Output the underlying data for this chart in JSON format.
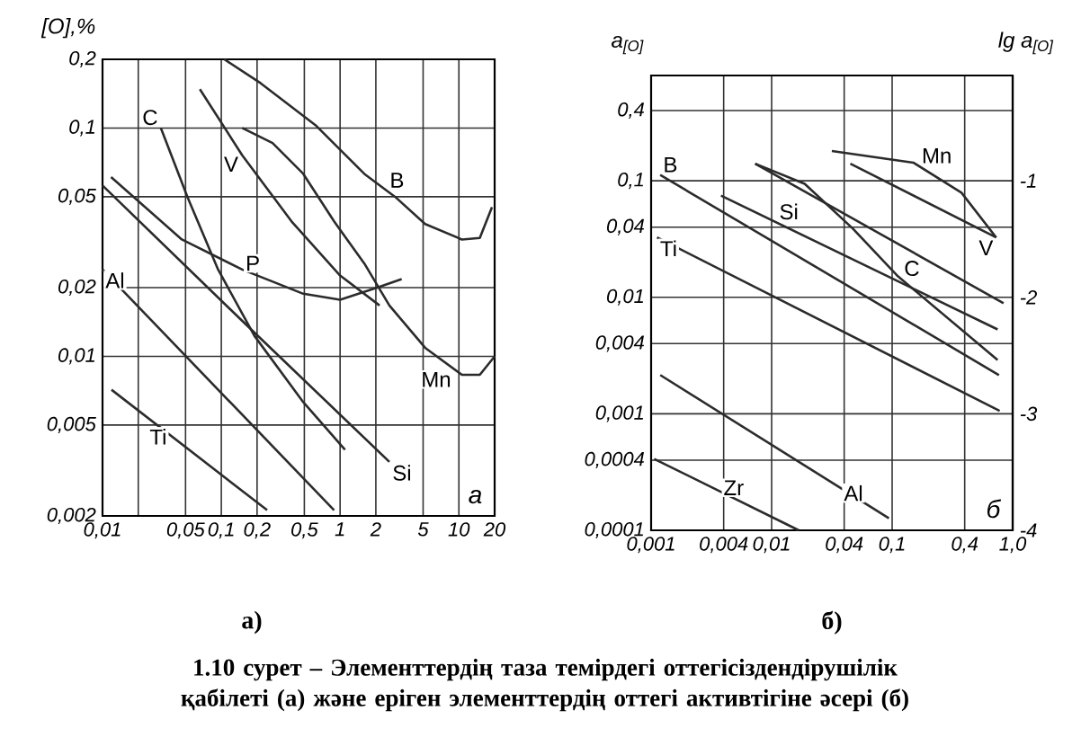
{
  "chart_data": [
    {
      "type": "line",
      "subtitle": "а)",
      "ylabel": "[O],%",
      "annotations": [
        "а"
      ],
      "log": "xy",
      "grid": true,
      "xlim": [
        0.01,
        20
      ],
      "ylim": [
        0.002,
        0.2
      ],
      "xticks": [
        {
          "value": 0.01,
          "label": "0,01"
        },
        {
          "value": 0.02,
          "label": null
        },
        {
          "value": 0.05,
          "label": "0,05"
        },
        {
          "value": 0.1,
          "label": "0,1"
        },
        {
          "value": 0.2,
          "label": "0,2"
        },
        {
          "value": 0.5,
          "label": "0,5"
        },
        1,
        2,
        5,
        10,
        20
      ],
      "yticks": [
        {
          "value": 0.002,
          "label": "0,002"
        },
        {
          "value": 0.005,
          "label": "0,005"
        },
        {
          "value": 0.01,
          "label": "0,01"
        },
        {
          "value": 0.02,
          "label": "0,02"
        },
        {
          "value": 0.05,
          "label": "0,05"
        },
        {
          "value": 0.1,
          "label": "0,1"
        },
        {
          "value": 0.2,
          "label": "0,2"
        }
      ],
      "series": [
        {
          "name": "B",
          "color": "#2b2b2b",
          "x": [
            0.106,
            0.215,
            0.62,
            1.6,
            2.9,
            5.2,
            10.6,
            15,
            19
          ],
          "values": [
            0.2,
            0.157,
            0.103,
            0.063,
            0.05,
            0.038,
            0.0325,
            0.033,
            0.045
          ]
        },
        {
          "name": "Mn",
          "color": "#2b2b2b",
          "x": [
            0.15,
            0.27,
            0.49,
            0.89,
            1.6,
            2.6,
            5.2,
            10.6,
            15,
            20
          ],
          "values": [
            0.1,
            0.086,
            0.063,
            0.039,
            0.0255,
            0.0167,
            0.0109,
            0.0083,
            0.0083,
            0.01
          ]
        },
        {
          "name": "V",
          "color": "#2b2b2b",
          "x": [
            0.066,
            0.15,
            0.39,
            1.0,
            2.15
          ],
          "values": [
            0.148,
            0.076,
            0.039,
            0.0226,
            0.0167
          ]
        },
        {
          "name": "P",
          "color": "#2b2b2b",
          "x": [
            0.0118,
            0.0465,
            0.15,
            0.49,
            1.0,
            2.05,
            3.3
          ],
          "values": [
            0.061,
            0.0325,
            0.024,
            0.0188,
            0.0177,
            0.02,
            0.0218
          ]
        },
        {
          "name": "Si",
          "color": "#2b2b2b",
          "x": [
            0.01,
            0.15,
            2.6
          ],
          "values": [
            0.056,
            0.0143,
            0.00345
          ]
        },
        {
          "name": "C",
          "color": "#2b2b2b",
          "x": [
            0.031,
            0.052,
            0.094,
            0.19,
            0.49,
            1.1
          ],
          "values": [
            0.1,
            0.0497,
            0.024,
            0.0123,
            0.0063,
            0.0039
          ]
        },
        {
          "name": "Al",
          "color": "#2b2b2b",
          "x": [
            0.01,
            0.89
          ],
          "values": [
            0.024,
            0.00212
          ]
        },
        {
          "name": "Ti",
          "color": "#2b2b2b",
          "x": [
            0.0119,
            0.243
          ],
          "values": [
            0.00714,
            0.00212
          ]
        }
      ]
    },
    {
      "type": "line",
      "subtitle": "б)",
      "ylabel": "*a*$_{[O]}$",
      "y2label": "lg *a*$_{[O]}$",
      "annotations": [
        "б",
        "1.10 сурет – Элементтердің таза темірдегі оттегісіздендірушілік қабілеті (а) және еріген элементтердің оттегі активтігіне әсері (б)"
      ],
      "log": "xy",
      "grid": true,
      "xlim": [
        0.001,
        1
      ],
      "ylim": [
        0.0001,
        0.8
      ],
      "y2lim": [
        -4,
        -0.097
      ],
      "xticks": [
        {
          "value": 0.001,
          "label": "0,001"
        },
        {
          "value": 0.004,
          "label": "0,004"
        },
        {
          "value": 0.01,
          "label": "0,01"
        },
        {
          "value": 0.04,
          "label": "0,04"
        },
        {
          "value": 0.1,
          "label": "0,1"
        },
        {
          "value": 0.4,
          "label": "0,4"
        },
        {
          "value": 1,
          "label": "1,0"
        }
      ],
      "yticks": [
        {
          "value": 0.0001,
          "label": "0,0001"
        },
        {
          "value": 0.0004,
          "label": "0,0004"
        },
        {
          "value": 0.001,
          "label": "0,001"
        },
        {
          "value": 0.004,
          "label": "0,004"
        },
        {
          "value": 0.01,
          "label": "0,01"
        },
        {
          "value": 0.04,
          "label": "0,04"
        },
        {
          "value": 0.1,
          "label": "0,1"
        },
        {
          "value": 0.4,
          "label": "0,4"
        }
      ],
      "y2ticks": [
        -1,
        -2,
        -3,
        -4
      ],
      "series": [
        {
          "name": "Mn",
          "color": "#2b2b2b",
          "x": [
            0.0316,
            0.15,
            0.376,
            0.73
          ],
          "values": [
            0.18,
            0.143,
            0.079,
            0.0326
          ]
        },
        {
          "name": "V",
          "color": "#2b2b2b",
          "x": [
            0.045,
            0.73
          ],
          "values": [
            0.14,
            0.0326
          ]
        },
        {
          "color": "#2b2b2b",
          "x": [
            0.0073,
            0.84
          ],
          "values": [
            0.14,
            0.0089
          ]
        },
        {
          "name": "C",
          "color": "#2b2b2b",
          "x": [
            0.0073,
            0.0188,
            0.047,
            0.112,
            0.75
          ],
          "values": [
            0.14,
            0.094,
            0.039,
            0.0151,
            0.0029
          ]
        },
        {
          "name": "Si",
          "color": "#2b2b2b",
          "x": [
            0.0038,
            0.75
          ],
          "values": [
            0.0745,
            0.0053
          ]
        },
        {
          "name": "B",
          "color": "#2b2b2b",
          "x": [
            0.00119,
            0.77
          ],
          "values": [
            0.112,
            0.00215
          ]
        },
        {
          "name": "Ti",
          "color": "#2b2b2b",
          "x": [
            0.00112,
            0.78
          ],
          "values": [
            0.0326,
            0.00106
          ]
        },
        {
          "name": "Al",
          "color": "#2b2b2b",
          "x": [
            0.00119,
            0.094
          ],
          "values": [
            0.00215,
            0.000127
          ]
        },
        {
          "name": "Zr",
          "color": "#2b2b2b",
          "x": [
            0.00106,
            0.0168
          ],
          "values": [
            0.00041,
            0.0001
          ]
        }
      ]
    }
  ]
}
